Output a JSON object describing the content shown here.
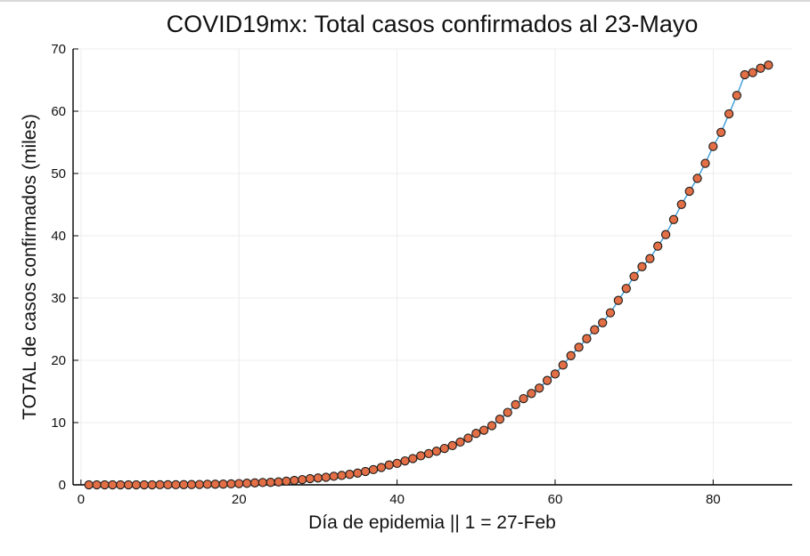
{
  "chart_data": {
    "type": "scatter",
    "title": "COVID19mx: Total casos confirmados al 23-Mayo",
    "xlabel": "Día de epidemia || 1 = 27-Feb",
    "ylabel": "TOTAL de casos confirmados (miles)",
    "xlim": [
      -1,
      90
    ],
    "ylim": [
      0,
      70
    ],
    "xticks": [
      0,
      20,
      40,
      60,
      80
    ],
    "yticks": [
      0,
      10,
      20,
      30,
      40,
      50,
      60,
      70
    ],
    "grid": true,
    "legend": "none",
    "colors": {
      "marker": "#e26f46",
      "marker_edge": "#1a1a1a",
      "line": "#3b9bd8"
    },
    "x": [
      1,
      2,
      3,
      4,
      5,
      6,
      7,
      8,
      9,
      10,
      11,
      12,
      13,
      14,
      15,
      16,
      17,
      18,
      19,
      20,
      21,
      22,
      23,
      24,
      25,
      26,
      27,
      28,
      29,
      30,
      31,
      32,
      33,
      34,
      35,
      36,
      37,
      38,
      39,
      40,
      41,
      42,
      43,
      44,
      45,
      46,
      47,
      48,
      49,
      50,
      51,
      52,
      53,
      54,
      55,
      56,
      57,
      58,
      59,
      60,
      61,
      62,
      63,
      64,
      65,
      66,
      67,
      68,
      69,
      70,
      71,
      72,
      73,
      74,
      75,
      76,
      77,
      78,
      79,
      80,
      81,
      82,
      83,
      84,
      85,
      86,
      87
    ],
    "y": [
      0.001,
      0.004,
      0.005,
      0.005,
      0.005,
      0.005,
      0.006,
      0.007,
      0.007,
      0.008,
      0.012,
      0.015,
      0.026,
      0.041,
      0.053,
      0.082,
      0.093,
      0.118,
      0.164,
      0.203,
      0.251,
      0.316,
      0.367,
      0.405,
      0.475,
      0.585,
      0.717,
      0.848,
      0.993,
      1.094,
      1.215,
      1.378,
      1.51,
      1.688,
      1.89,
      2.143,
      2.439,
      2.785,
      3.181,
      3.441,
      3.844,
      4.219,
      4.661,
      5.014,
      5.399,
      5.847,
      6.297,
      6.875,
      7.497,
      8.261,
      8.772,
      9.501,
      10.544,
      11.633,
      12.872,
      13.842,
      14.677,
      15.529,
      16.752,
      17.799,
      19.224,
      20.739,
      22.088,
      23.471,
      24.905,
      26.025,
      27.634,
      29.616,
      31.522,
      33.46,
      35.022,
      36.327,
      38.324,
      40.186,
      42.595,
      45.032,
      47.144,
      49.219,
      51.633,
      54.346,
      56.594,
      59.567,
      62.527,
      65.856,
      66.2,
      66.9,
      67.4
    ]
  }
}
